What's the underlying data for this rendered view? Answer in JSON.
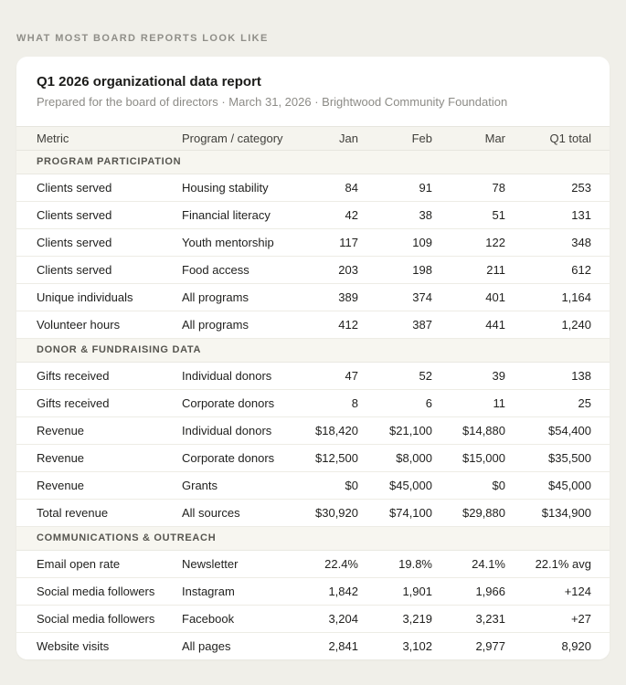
{
  "page": {
    "eyebrow": "WHAT MOST BOARD REPORTS LOOK LIKE"
  },
  "report": {
    "title": "Q1 2026 organizational data report",
    "subtitle": "Prepared for the board of directors · March 31, 2026 · Brightwood Community Foundation"
  },
  "table": {
    "columns": [
      "Metric",
      "Program / category",
      "Jan",
      "Feb",
      "Mar",
      "Q1 total"
    ],
    "sections": [
      {
        "label": "PROGRAM PARTICIPATION",
        "rows": [
          [
            "Clients served",
            "Housing stability",
            "84",
            "91",
            "78",
            "253"
          ],
          [
            "Clients served",
            "Financial literacy",
            "42",
            "38",
            "51",
            "131"
          ],
          [
            "Clients served",
            "Youth mentorship",
            "117",
            "109",
            "122",
            "348"
          ],
          [
            "Clients served",
            "Food access",
            "203",
            "198",
            "211",
            "612"
          ],
          [
            "Unique individuals",
            "All programs",
            "389",
            "374",
            "401",
            "1,164"
          ],
          [
            "Volunteer hours",
            "All programs",
            "412",
            "387",
            "441",
            "1,240"
          ]
        ]
      },
      {
        "label": "DONOR & FUNDRAISING DATA",
        "rows": [
          [
            "Gifts received",
            "Individual donors",
            "47",
            "52",
            "39",
            "138"
          ],
          [
            "Gifts received",
            "Corporate donors",
            "8",
            "6",
            "11",
            "25"
          ],
          [
            "Revenue",
            "Individual donors",
            "$18,420",
            "$21,100",
            "$14,880",
            "$54,400"
          ],
          [
            "Revenue",
            "Corporate donors",
            "$12,500",
            "$8,000",
            "$15,000",
            "$35,500"
          ],
          [
            "Revenue",
            "Grants",
            "$0",
            "$45,000",
            "$0",
            "$45,000"
          ],
          [
            "Total revenue",
            "All sources",
            "$30,920",
            "$74,100",
            "$29,880",
            "$134,900"
          ]
        ]
      },
      {
        "label": "COMMUNICATIONS & OUTREACH",
        "rows": [
          [
            "Email open rate",
            "Newsletter",
            "22.4%",
            "19.8%",
            "24.1%",
            "22.1% avg"
          ],
          [
            "Social media followers",
            "Instagram",
            "1,842",
            "1,901",
            "1,966",
            "+124"
          ],
          [
            "Social media followers",
            "Facebook",
            "3,204",
            "3,219",
            "3,231",
            "+27"
          ],
          [
            "Website visits",
            "All pages",
            "2,841",
            "3,102",
            "2,977",
            "8,920"
          ]
        ]
      }
    ]
  },
  "colors": {
    "page_background": "#f0efe9",
    "card_background": "#ffffff",
    "header_row_background": "#f5f4ee",
    "section_row_background": "#f7f6f0",
    "row_border": "#edece5",
    "eyebrow_text": "#8f8e88",
    "subtitle_text": "#8c8b86",
    "body_text": "#1f1f1d"
  }
}
